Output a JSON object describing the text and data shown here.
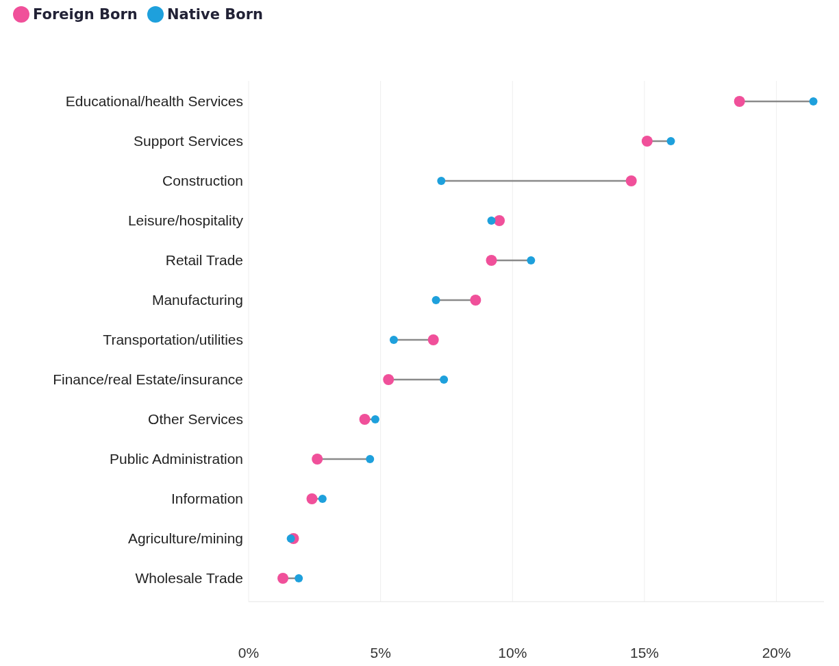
{
  "chart_data": {
    "type": "scatter",
    "orientation": "horizontal",
    "categories": [
      "Educational/health Services",
      "Support Services",
      "Construction",
      "Leisure/hospitality",
      "Retail Trade",
      "Manufacturing",
      "Transportation/utilities",
      "Finance/real Estate/insurance",
      "Other Services",
      "Public Administration",
      "Information",
      "Agriculture/mining",
      "Wholesale Trade"
    ],
    "series": [
      {
        "name": "Foreign Born",
        "color": "#f0509a",
        "values": [
          18.6,
          15.1,
          14.5,
          9.5,
          9.2,
          8.6,
          7.0,
          5.3,
          4.4,
          2.6,
          2.4,
          1.7,
          1.3
        ]
      },
      {
        "name": "Native Born",
        "color": "#1ea0dc",
        "values": [
          21.4,
          16.0,
          7.3,
          9.2,
          10.7,
          7.1,
          5.5,
          7.4,
          4.8,
          4.6,
          2.8,
          1.6,
          1.9
        ]
      }
    ],
    "xlim": [
      0,
      21.8
    ],
    "xticks": [
      {
        "value": 0,
        "label": "0%"
      },
      {
        "value": 5,
        "label": "5%"
      },
      {
        "value": 10,
        "label": "10%"
      },
      {
        "value": 15,
        "label": "15%"
      },
      {
        "value": 20,
        "label": "20%"
      }
    ],
    "grid": "x",
    "legend": "top left",
    "marker": "circle"
  }
}
